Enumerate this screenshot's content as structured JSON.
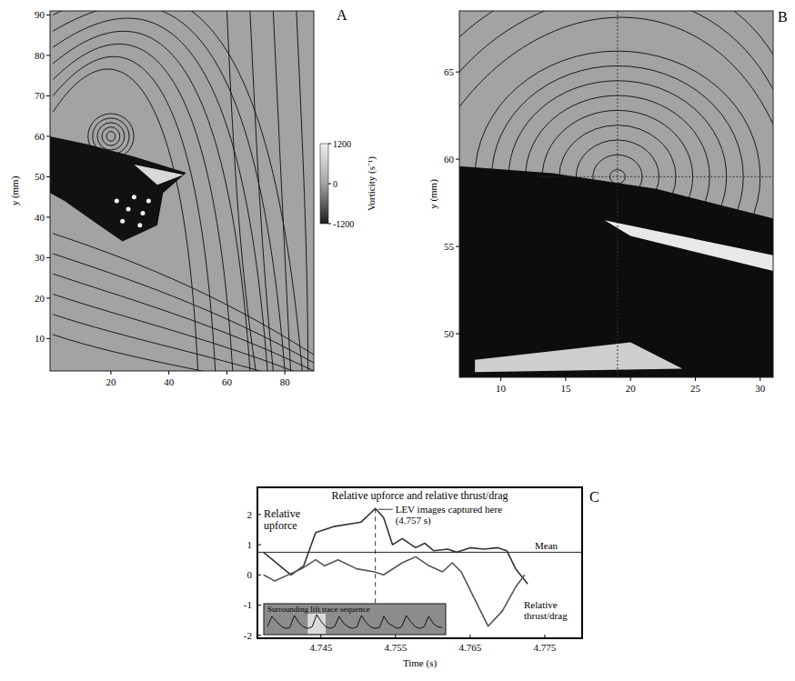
{
  "chart_data": [
    {
      "type": "vector_field",
      "label": "A",
      "y_label": "y (mm)",
      "xlim": [
        -1,
        90
      ],
      "ylim": [
        2,
        91
      ],
      "xticks": [
        20,
        40,
        60,
        80
      ],
      "yticks": [
        10,
        20,
        30,
        40,
        50,
        60,
        70,
        80,
        90
      ],
      "colorbar": {
        "label": "Vorticity (s⁻¹)",
        "range": [
          -1200,
          1200
        ],
        "ticks": [
          1200,
          0,
          -1200
        ]
      }
    },
    {
      "type": "vector_field",
      "label": "B",
      "y_label": "y (mm)",
      "xlim": [
        6.8,
        31
      ],
      "ylim": [
        47.5,
        68.5
      ],
      "xticks": [
        10,
        15,
        20,
        25,
        30
      ],
      "yticks": [
        50,
        55,
        60,
        65
      ]
    },
    {
      "type": "line",
      "label": "C",
      "title": "Relative upforce and relative thrust/drag",
      "x_label": "Time (s)",
      "xlim": [
        4.7365,
        4.78
      ],
      "ylim": [
        -2.1,
        2.9
      ],
      "xticks": [
        4.745,
        4.755,
        4.765,
        4.775
      ],
      "yticks": [
        -2,
        -1,
        0,
        1,
        2
      ],
      "series": [
        {
          "name": "Relative upforce",
          "color": "#333333",
          "x": [
            4.7373,
            4.741,
            4.7427,
            4.7443,
            4.7467,
            4.7504,
            4.7523,
            4.7534,
            4.7546,
            4.7559,
            4.7577,
            4.7589,
            4.7601,
            4.762,
            4.7632,
            4.765,
            4.7668,
            4.7687,
            4.7699,
            4.7711,
            4.7727
          ],
          "values": [
            0.75,
            0.0,
            0.3,
            1.4,
            1.6,
            1.75,
            2.2,
            1.9,
            1.0,
            1.2,
            0.9,
            1.05,
            0.8,
            0.85,
            0.75,
            0.9,
            0.85,
            0.9,
            0.8,
            0.2,
            -0.3
          ]
        },
        {
          "name": "Relative thrust/drag",
          "color": "#555555",
          "x": [
            4.7373,
            4.7388,
            4.7424,
            4.7443,
            4.7455,
            4.7473,
            4.7498,
            4.7522,
            4.7534,
            4.7559,
            4.7577,
            4.7595,
            4.7613,
            4.7626,
            4.7638,
            4.7656,
            4.7674,
            4.7693,
            4.7711,
            4.7723
          ],
          "values": [
            0.0,
            -0.2,
            0.2,
            0.5,
            0.3,
            0.5,
            0.2,
            0.1,
            0.0,
            0.4,
            0.6,
            0.3,
            0.1,
            0.4,
            0.1,
            -0.8,
            -1.7,
            -1.2,
            -0.4,
            0.0
          ]
        }
      ],
      "annotations": [
        {
          "text": "LEV images captured here (4.757 s)",
          "x": 4.7523
        },
        {
          "text": "Mean",
          "y": 0.75
        }
      ],
      "inset": {
        "title": "Surrounding lift trace sequence",
        "ylim": [
          0,
          1
        ],
        "highlight": [
          9,
          13
        ],
        "values": [
          0.3,
          0.9,
          0.6,
          0.35,
          0.2,
          0.25,
          0.95,
          0.55,
          0.3,
          0.2,
          0.3,
          1.0,
          0.6,
          0.3,
          0.2,
          0.3,
          0.9,
          0.5,
          0.3,
          0.2,
          0.3,
          0.95,
          0.55,
          0.3,
          0.2,
          0.25,
          0.9,
          0.5,
          0.35,
          0.2,
          0.3,
          0.95,
          0.6,
          0.3,
          0.2,
          0.3,
          0.9,
          0.5,
          0.3,
          0.25
        ]
      }
    }
  ]
}
